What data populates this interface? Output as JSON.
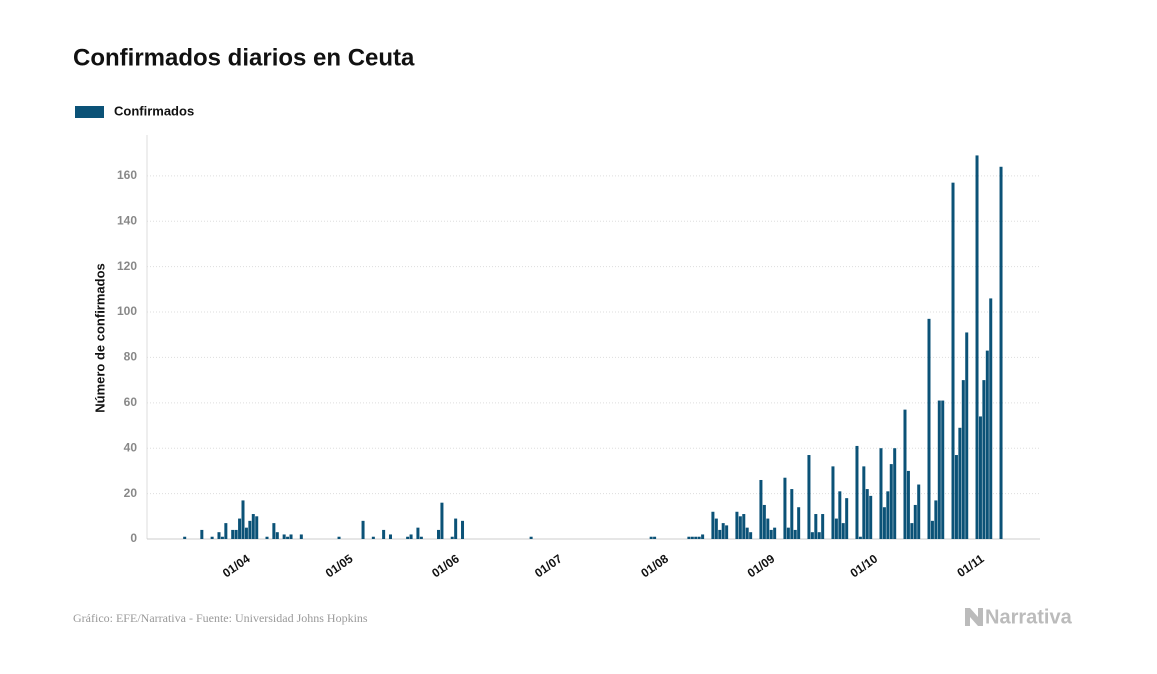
{
  "chart_data": {
    "type": "bar",
    "title": "Confirmados diarios en Ceuta",
    "y_label": "Número de confirmados",
    "source": "Gráfico: EFE/Narrativa - Fuente: Universidad Johns Hopkins",
    "brand": "Narrativa",
    "grid": true,
    "ylim": [
      0,
      178
    ],
    "yticks": [
      0,
      20,
      40,
      60,
      80,
      100,
      120,
      140,
      160
    ],
    "categories": [
      null,
      null,
      null,
      null,
      null,
      null,
      null,
      null,
      null,
      null,
      null,
      null,
      null,
      null,
      null,
      null,
      null,
      null,
      null,
      "01/04",
      null,
      null,
      null,
      null,
      null,
      null,
      null,
      null,
      null,
      null,
      null,
      null,
      null,
      null,
      null,
      null,
      null,
      null,
      null,
      null,
      null,
      null,
      null,
      null,
      null,
      null,
      null,
      null,
      null,
      "01/05",
      null,
      null,
      null,
      null,
      null,
      null,
      null,
      null,
      null,
      null,
      null,
      null,
      null,
      null,
      null,
      null,
      null,
      null,
      null,
      null,
      null,
      null,
      null,
      null,
      null,
      null,
      null,
      null,
      null,
      null,
      "01/06",
      null,
      null,
      null,
      null,
      null,
      null,
      null,
      null,
      null,
      null,
      null,
      null,
      null,
      null,
      null,
      null,
      null,
      null,
      null,
      null,
      null,
      null,
      null,
      null,
      null,
      null,
      null,
      null,
      null,
      "01/07",
      null,
      null,
      null,
      null,
      null,
      null,
      null,
      null,
      null,
      null,
      null,
      null,
      null,
      null,
      null,
      null,
      null,
      null,
      null,
      null,
      null,
      null,
      null,
      null,
      null,
      null,
      null,
      null,
      null,
      null,
      "01/08",
      null,
      null,
      null,
      null,
      null,
      null,
      null,
      null,
      null,
      null,
      null,
      null,
      null,
      null,
      null,
      null,
      null,
      null,
      null,
      null,
      null,
      null,
      null,
      null,
      null,
      null,
      null,
      null,
      null,
      null,
      "01/09",
      null,
      null,
      null,
      null,
      null,
      null,
      null,
      null,
      null,
      null,
      null,
      null,
      null,
      null,
      null,
      null,
      null,
      null,
      null,
      null,
      null,
      null,
      null,
      null,
      null,
      null,
      null,
      null,
      null,
      "01/10",
      null,
      null,
      null,
      null,
      null,
      null,
      null,
      null,
      null,
      null,
      null,
      null,
      null,
      null,
      null,
      null,
      null,
      null,
      null,
      null,
      null,
      null,
      null,
      null,
      null,
      null,
      null,
      null,
      null,
      null,
      "01/11",
      null,
      null,
      null,
      null,
      null,
      null,
      null
    ],
    "series": [
      {
        "name": "Confirmados",
        "color": "#0b5277",
        "values": [
          0,
          0,
          1,
          0,
          0,
          0,
          0,
          4,
          0,
          0,
          1,
          0,
          3,
          1,
          7,
          0,
          4,
          4,
          9,
          17,
          5,
          8,
          11,
          10,
          0,
          0,
          1,
          0,
          7,
          3,
          0,
          2,
          1,
          2,
          0,
          0,
          2,
          0,
          0,
          0,
          0,
          0,
          0,
          0,
          0,
          0,
          0,
          1,
          0,
          0,
          0,
          0,
          0,
          0,
          8,
          0,
          0,
          1,
          0,
          0,
          4,
          0,
          2,
          0,
          0,
          0,
          0,
          1,
          2,
          0,
          5,
          1,
          0,
          0,
          0,
          0,
          4,
          16,
          0,
          0,
          1,
          9,
          0,
          8,
          0,
          0,
          0,
          0,
          0,
          0,
          0,
          0,
          0,
          0,
          0,
          0,
          0,
          0,
          0,
          0,
          0,
          0,
          0,
          1,
          0,
          0,
          0,
          0,
          0,
          0,
          0,
          0,
          0,
          0,
          0,
          0,
          0,
          0,
          0,
          0,
          0,
          0,
          0,
          0,
          0,
          0,
          0,
          0,
          0,
          0,
          0,
          0,
          0,
          0,
          0,
          0,
          0,
          0,
          1,
          1,
          0,
          0,
          0,
          0,
          0,
          0,
          0,
          0,
          0,
          1,
          1,
          1,
          1,
          2,
          0,
          0,
          12,
          9,
          4,
          7,
          6,
          0,
          0,
          12,
          10,
          11,
          5,
          3,
          0,
          0,
          26,
          15,
          9,
          4,
          5,
          0,
          0,
          27,
          5,
          22,
          4,
          14,
          0,
          0,
          37,
          3,
          11,
          3,
          11,
          0,
          0,
          32,
          9,
          21,
          7,
          18,
          0,
          0,
          41,
          1,
          32,
          22,
          19,
          0,
          0,
          40,
          14,
          21,
          33,
          40,
          0,
          0,
          57,
          30,
          7,
          15,
          24,
          0,
          0,
          97,
          8,
          17,
          61,
          61,
          0,
          0,
          157,
          37,
          49,
          70,
          91,
          0,
          0,
          169,
          54,
          70,
          83,
          106,
          0,
          0,
          164
        ]
      }
    ]
  }
}
